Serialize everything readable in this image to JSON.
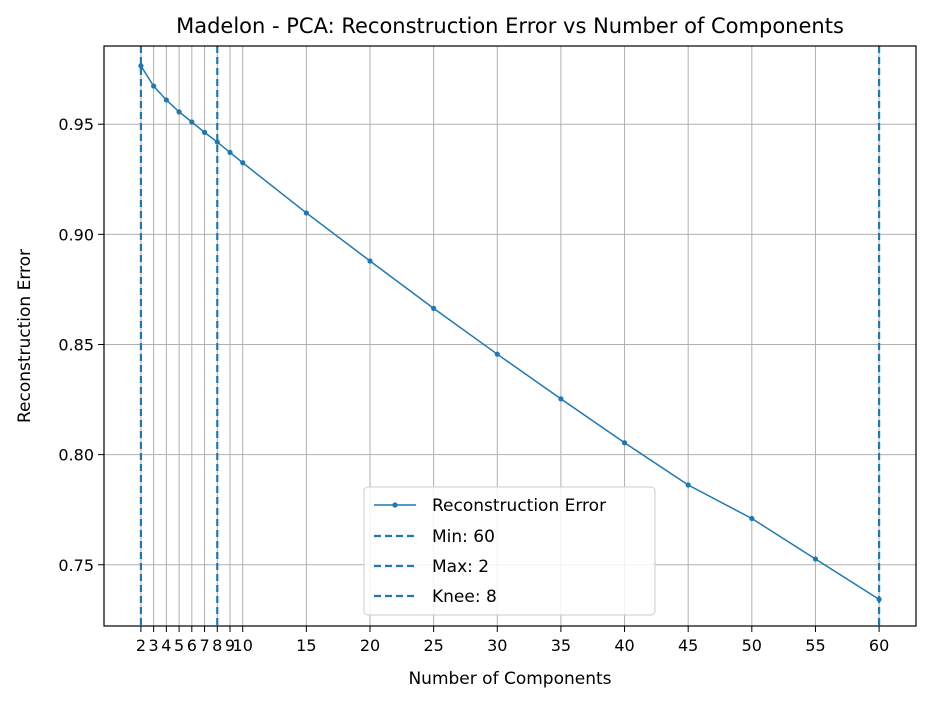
{
  "chart_data": {
    "type": "line",
    "title": "Madelon - PCA: Reconstruction Error vs Number of Components",
    "xlabel": "Number of Components",
    "ylabel": "Reconstruction Error",
    "xlim": [
      -0.9,
      62.9
    ],
    "ylim": [
      0.7222,
      0.9855
    ],
    "x_ticks": [
      2,
      3,
      4,
      5,
      6,
      7,
      8,
      9,
      10,
      15,
      20,
      25,
      30,
      35,
      40,
      45,
      50,
      55,
      60
    ],
    "y_ticks": [
      0.75,
      0.8,
      0.85,
      0.9,
      0.95
    ],
    "y_tick_labels": [
      "0.75",
      "0.80",
      "0.85",
      "0.90",
      "0.95"
    ],
    "grid": true,
    "legend_position": "lower-center",
    "series": [
      {
        "name": "Reconstruction Error",
        "color": "#1f77b4",
        "x": [
          2,
          3,
          4,
          5,
          6,
          7,
          8,
          9,
          10,
          15,
          20,
          25,
          30,
          35,
          40,
          45,
          50,
          55,
          60
        ],
        "y": [
          0.9765,
          0.9673,
          0.961,
          0.9556,
          0.951,
          0.9463,
          0.9419,
          0.9372,
          0.9325,
          0.9097,
          0.8879,
          0.8664,
          0.8456,
          0.8253,
          0.8054,
          0.7862,
          0.771,
          0.7526,
          0.7343
        ]
      }
    ],
    "vlines": [
      {
        "name": "Min: 60",
        "x": 60,
        "color": "#1f77b4",
        "style": "dashed"
      },
      {
        "name": "Max: 2",
        "x": 2,
        "color": "#1f77b4",
        "style": "dashed"
      },
      {
        "name": "Knee: 8",
        "x": 8,
        "color": "#1f77b4",
        "style": "dashed"
      }
    ]
  }
}
